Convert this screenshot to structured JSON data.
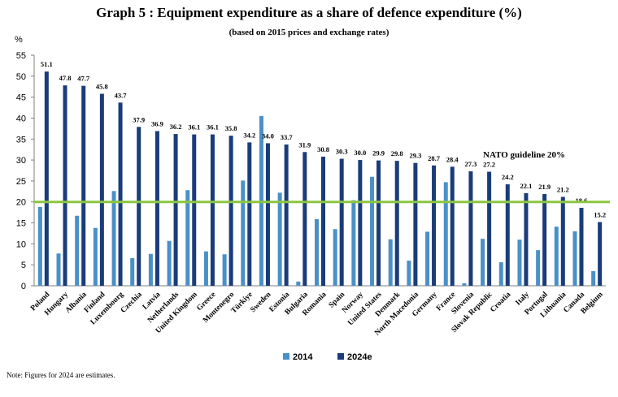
{
  "title": "Graph 5 : Equipment expenditure as a share of defence expenditure (%)",
  "subtitle": "(based on 2015 prices and exchange rates)",
  "note": "Note: Figures for 2024 are estimates.",
  "colors": {
    "s2014": "#4a90c8",
    "s2024": "#1a3c7a",
    "guideline": "#8cc63f",
    "axis": "#7f7f7f"
  },
  "chart_data": {
    "type": "bar",
    "ylabel": "%",
    "ylim": [
      0,
      55
    ],
    "yticks": [
      0,
      5,
      10,
      15,
      20,
      25,
      30,
      35,
      40,
      45,
      50,
      55
    ],
    "grid": false,
    "legend_position": "bottom",
    "categories": [
      "Poland",
      "Hungary",
      "Albania",
      "Finland",
      "Luxembourg",
      "Czechia",
      "Latvia",
      "Netherlands",
      "United Kingdom",
      "Greece",
      "Montenegro",
      "Türkiye",
      "Sweden",
      "Estonia",
      "Bulgaria",
      "Romania",
      "Spain",
      "Norway",
      "United States",
      "Denmark",
      "North Macedonia",
      "Germany",
      "France",
      "Slovenia",
      "Slovak Republic",
      "Croatia",
      "Italy",
      "Portugal",
      "Lithuania",
      "Canada",
      "Belgium"
    ],
    "series": [
      {
        "name": "2014",
        "values": [
          18.8,
          7.7,
          16.7,
          13.8,
          22.6,
          6.6,
          7.6,
          10.7,
          22.8,
          8.2,
          7.5,
          25.1,
          40.5,
          22.2,
          1.0,
          15.9,
          13.5,
          20.4,
          26.0,
          11.1,
          6.0,
          12.9,
          24.7,
          0.6,
          11.2,
          5.6,
          11.0,
          8.5,
          14.1,
          13.0,
          3.5
        ]
      },
      {
        "name": "2024e",
        "values": [
          51.1,
          47.8,
          47.7,
          45.8,
          43.7,
          37.9,
          36.9,
          36.2,
          36.1,
          36.1,
          35.8,
          34.2,
          34.0,
          33.7,
          31.9,
          30.8,
          30.3,
          30.0,
          29.9,
          29.8,
          29.3,
          28.7,
          28.4,
          27.3,
          27.2,
          24.2,
          22.1,
          21.9,
          21.2,
          18.6,
          15.2
        ]
      }
    ],
    "data_labels": [
      "51.1",
      "47.8",
      "47.7",
      "45.8",
      "43.7",
      "37.9",
      "36.9",
      "36.2",
      "36.1",
      "36.1",
      "35.8",
      "34.2",
      "34.0",
      "33.7",
      "31.9",
      "30.8",
      "30.3",
      "30.0",
      "29.9",
      "29.8",
      "29.3",
      "28.7",
      "28.4",
      "27.3",
      "27.2",
      "24.2",
      "22.1",
      "21.9",
      "21.2",
      "18.6",
      "15.2"
    ],
    "guideline": {
      "value": 20,
      "label": "NATO guideline 20%"
    }
  }
}
